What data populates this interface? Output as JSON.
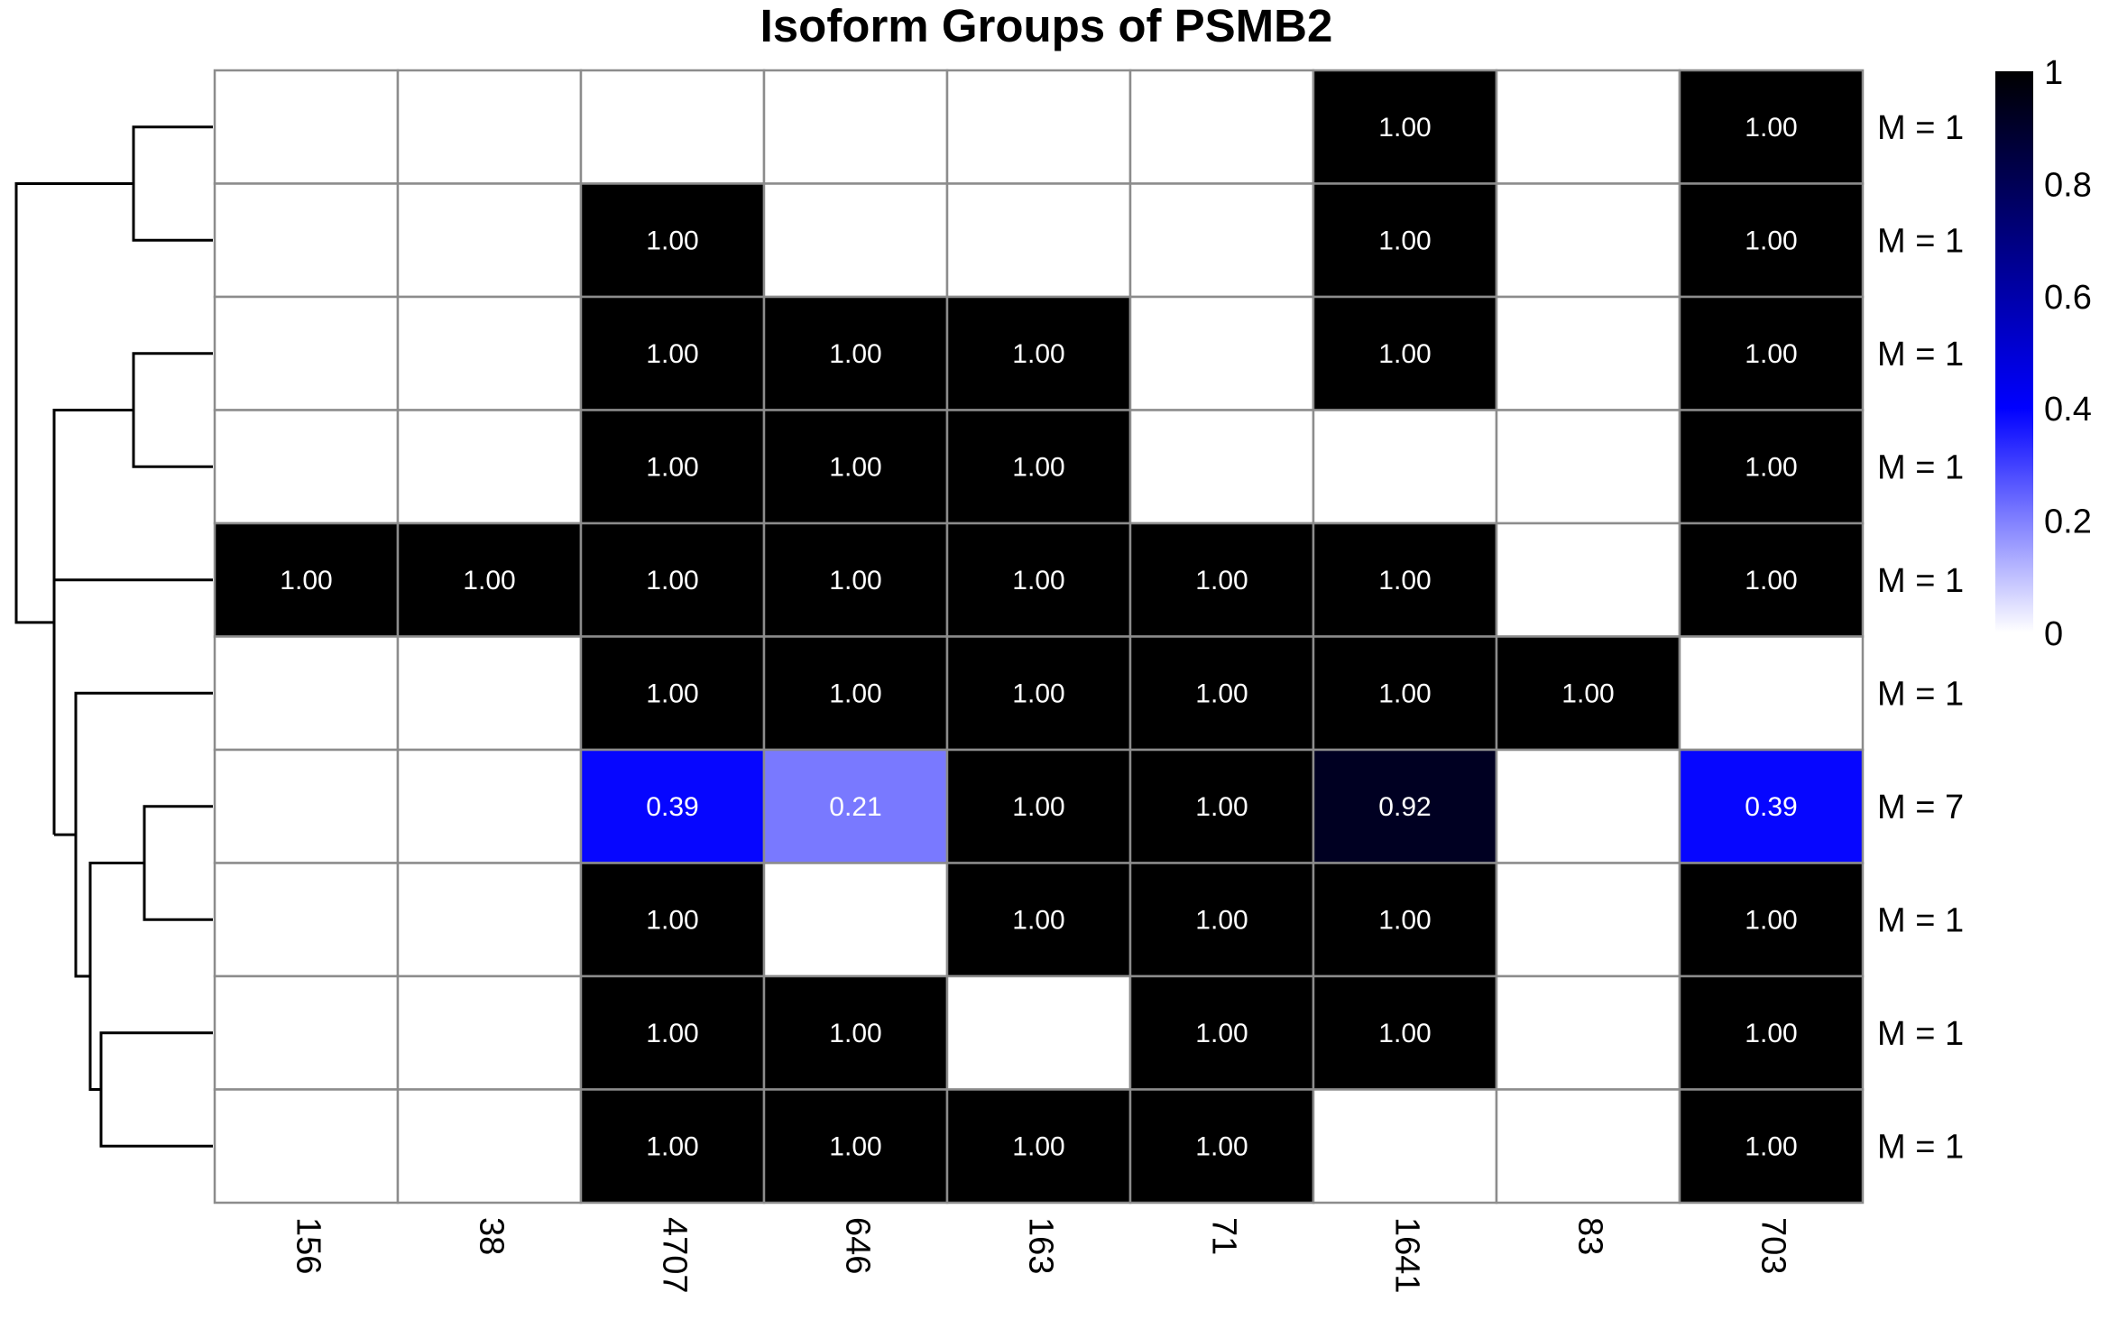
{
  "chart_data": {
    "type": "heatmap",
    "title": "Isoform Groups of PSMB2",
    "columns": [
      "156",
      "38",
      "4707",
      "646",
      "163",
      "71",
      "1641",
      "83",
      "703"
    ],
    "rows": [
      "M = 1",
      "M = 1",
      "M = 1",
      "M = 1",
      "M = 1",
      "M = 1",
      "M = 7",
      "M = 1",
      "M = 1",
      "M = 1"
    ],
    "values": [
      [
        null,
        null,
        null,
        null,
        null,
        null,
        1.0,
        null,
        1.0
      ],
      [
        null,
        null,
        1.0,
        null,
        null,
        null,
        1.0,
        null,
        1.0
      ],
      [
        null,
        null,
        1.0,
        1.0,
        1.0,
        null,
        1.0,
        null,
        1.0
      ],
      [
        null,
        null,
        1.0,
        1.0,
        1.0,
        null,
        null,
        null,
        1.0
      ],
      [
        1.0,
        1.0,
        1.0,
        1.0,
        1.0,
        1.0,
        1.0,
        null,
        1.0
      ],
      [
        null,
        null,
        1.0,
        1.0,
        1.0,
        1.0,
        1.0,
        1.0,
        null
      ],
      [
        null,
        null,
        0.39,
        0.21,
        1.0,
        1.0,
        0.92,
        null,
        0.39
      ],
      [
        null,
        null,
        1.0,
        null,
        1.0,
        1.0,
        1.0,
        null,
        1.0
      ],
      [
        null,
        null,
        1.0,
        1.0,
        null,
        1.0,
        1.0,
        null,
        1.0
      ],
      [
        null,
        null,
        1.0,
        1.0,
        1.0,
        1.0,
        null,
        null,
        1.0
      ]
    ],
    "value_format": "2 decimals",
    "color_scale": {
      "low": "#ffffff",
      "mid": "#0000ff",
      "high": "#000000",
      "domain": [
        0,
        1
      ]
    },
    "legend": {
      "ticks": [
        "0",
        "0.2",
        "0.4",
        "0.6",
        "0.8",
        "1"
      ],
      "placement": "right"
    },
    "row_dendrogram": true,
    "grid_color": "#8c8c8c"
  }
}
